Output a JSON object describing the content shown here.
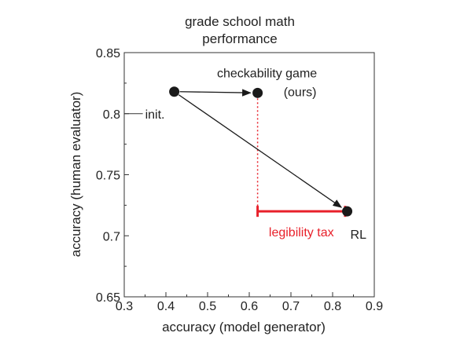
{
  "chart_data": {
    "type": "scatter",
    "title": [
      "grade school math",
      "performance"
    ],
    "xlabel": "accuracy (model generator)",
    "ylabel": "accuracy (human evaluator)",
    "xlim": [
      0.3,
      0.9
    ],
    "ylim": [
      0.65,
      0.85
    ],
    "x_ticks": [
      0.3,
      0.4,
      0.5,
      0.6,
      0.7,
      0.8,
      0.9
    ],
    "x_tick_labels": [
      "0.3",
      "0.4",
      "0.5",
      "0.6",
      "0.7",
      "0.8",
      "0.9"
    ],
    "y_ticks": [
      0.65,
      0.7,
      0.75,
      0.8,
      0.85
    ],
    "y_tick_labels": [
      "0.65",
      "0.7",
      "0.75",
      "0.8",
      "0.85"
    ],
    "points": [
      {
        "id": "init",
        "label": "init.",
        "x": 0.42,
        "y": 0.818
      },
      {
        "id": "checkability",
        "label": [
          "checkability game",
          "(ours)"
        ],
        "x": 0.62,
        "y": 0.817
      },
      {
        "id": "rl",
        "label": "RL",
        "x": 0.835,
        "y": 0.72
      }
    ],
    "arrows": [
      {
        "from": "init",
        "to": "checkability"
      },
      {
        "from": "init",
        "to": "rl"
      }
    ],
    "legibility_tax": {
      "label": "legibility tax",
      "x_start": 0.62,
      "x_end": 0.83,
      "y": 0.72
    },
    "colors": {
      "point": "#1a1a1a",
      "arrow": "#1a1a1a",
      "tax": "#e8202a",
      "axis": "#333333"
    }
  }
}
